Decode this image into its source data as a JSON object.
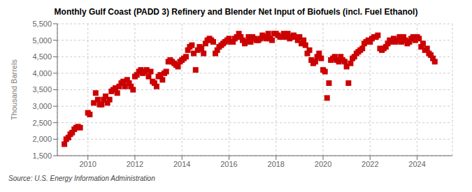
{
  "chart_data": {
    "type": "scatter",
    "title": "Monthly Gulf Coast (PADD 3) Refinery and Blender Net Input of Biofuels (incl. Fuel Ethanol)",
    "ylabel": "Thousand Barrels",
    "annotations": [
      "Source: U.S. Energy Information Administration"
    ],
    "color": "#cc0000",
    "marker": "square",
    "grid": true,
    "xlim": [
      2008.7,
      2025.5
    ],
    "ylim": [
      1500,
      5500
    ],
    "xticks": [
      2010,
      2012,
      2014,
      2016,
      2018,
      2020,
      2022,
      2024
    ],
    "yticks": [
      {
        "value": 1500,
        "label": "1,500"
      },
      {
        "value": 2000,
        "label": "2,000"
      },
      {
        "value": 2500,
        "label": "2,500"
      },
      {
        "value": 3000,
        "label": "3,000"
      },
      {
        "value": 3500,
        "label": "3,500"
      },
      {
        "value": 4000,
        "label": "4,000"
      },
      {
        "value": 4500,
        "label": "4,500"
      },
      {
        "value": 5000,
        "label": "5,000"
      },
      {
        "value": 5500,
        "label": "5,500"
      }
    ],
    "x": [
      2009.0,
      2009.08,
      2009.17,
      2009.25,
      2009.33,
      2009.42,
      2009.5,
      2009.58,
      2009.67,
      2010.0,
      2010.08,
      2010.25,
      2010.33,
      2010.42,
      2010.5,
      2010.58,
      2010.67,
      2010.75,
      2010.83,
      2010.92,
      2011.0,
      2011.08,
      2011.17,
      2011.25,
      2011.33,
      2011.42,
      2011.5,
      2011.58,
      2011.67,
      2011.75,
      2011.83,
      2011.92,
      2012.0,
      2012.08,
      2012.17,
      2012.25,
      2012.33,
      2012.42,
      2012.5,
      2012.58,
      2012.67,
      2012.75,
      2012.83,
      2012.92,
      2013.0,
      2013.08,
      2013.17,
      2013.25,
      2013.33,
      2013.42,
      2013.5,
      2013.58,
      2013.67,
      2013.75,
      2013.83,
      2013.92,
      2014.0,
      2014.08,
      2014.17,
      2014.25,
      2014.33,
      2014.42,
      2014.5,
      2014.58,
      2014.67,
      2014.75,
      2014.83,
      2014.92,
      2015.0,
      2015.08,
      2015.17,
      2015.25,
      2015.33,
      2015.42,
      2015.5,
      2015.58,
      2015.67,
      2015.75,
      2015.83,
      2015.92,
      2016.0,
      2016.08,
      2016.17,
      2016.25,
      2016.33,
      2016.42,
      2016.5,
      2016.58,
      2016.67,
      2016.75,
      2016.83,
      2016.92,
      2017.0,
      2017.08,
      2017.17,
      2017.25,
      2017.33,
      2017.42,
      2017.5,
      2017.58,
      2017.67,
      2017.75,
      2017.83,
      2017.92,
      2018.0,
      2018.08,
      2018.17,
      2018.25,
      2018.33,
      2018.42,
      2018.5,
      2018.58,
      2018.67,
      2018.75,
      2018.83,
      2018.92,
      2019.0,
      2019.08,
      2019.17,
      2019.25,
      2019.33,
      2019.42,
      2019.5,
      2019.58,
      2019.67,
      2019.75,
      2019.83,
      2019.92,
      2020.0,
      2020.08,
      2020.17,
      2020.25,
      2020.33,
      2020.42,
      2020.5,
      2020.58,
      2020.67,
      2020.75,
      2020.83,
      2020.92,
      2021.0,
      2021.08,
      2021.17,
      2021.25,
      2021.33,
      2021.42,
      2021.5,
      2021.58,
      2021.67,
      2021.75,
      2021.83,
      2021.92,
      2022.0,
      2022.08,
      2022.17,
      2022.25,
      2022.33,
      2022.42,
      2022.5,
      2022.58,
      2022.67,
      2022.75,
      2022.83,
      2022.92,
      2023.0,
      2023.08,
      2023.17,
      2023.25,
      2023.33,
      2023.42,
      2023.5,
      2023.58,
      2023.67,
      2023.75,
      2023.83,
      2023.92,
      2024.0,
      2024.08,
      2024.17,
      2024.25,
      2024.33,
      2024.42,
      2024.5,
      2024.58,
      2024.67,
      2024.75
    ],
    "values": [
      1850,
      2000,
      2050,
      2150,
      2200,
      2300,
      2350,
      2380,
      2350,
      2800,
      2750,
      3100,
      3400,
      3200,
      3050,
      3050,
      3200,
      3300,
      3100,
      3200,
      3450,
      3500,
      3550,
      3400,
      3600,
      3700,
      3750,
      3600,
      3800,
      3700,
      3600,
      3500,
      3900,
      3950,
      4050,
      4100,
      4000,
      4050,
      4100,
      3900,
      4050,
      3750,
      3700,
      3600,
      3900,
      3950,
      3800,
      4000,
      4050,
      4350,
      4400,
      4350,
      4300,
      4250,
      4200,
      4350,
      4400,
      4450,
      4500,
      4700,
      4800,
      4850,
      4600,
      4100,
      4700,
      4800,
      4750,
      4600,
      4900,
      5000,
      5050,
      5000,
      4950,
      4600,
      4700,
      4800,
      4850,
      4900,
      4950,
      5000,
      5050,
      4950,
      4950,
      5050,
      5100,
      5200,
      5100,
      5000,
      4900,
      4950,
      5100,
      4950,
      5100,
      5050,
      5000,
      5000,
      5050,
      5150,
      5100,
      5050,
      5200,
      5050,
      5000,
      5200,
      5200,
      5150,
      5100,
      5100,
      5200,
      5100,
      5200,
      5050,
      5100,
      5150,
      5100,
      5000,
      5100,
      4900,
      5000,
      4850,
      4600,
      4700,
      4400,
      4300,
      4350,
      4500,
      4600,
      4450,
      4100,
      4050,
      3250,
      3700,
      4400,
      4450,
      4500,
      4400,
      4350,
      4500,
      4400,
      4350,
      4200,
      3700,
      4300,
      4450,
      4500,
      4600,
      4650,
      4700,
      4750,
      4900,
      4950,
      5000,
      4950,
      5050,
      5100,
      5100,
      5150,
      4750,
      4700,
      4750,
      4800,
      4900,
      5000,
      4950,
      5050,
      4950,
      5000,
      5100,
      4950,
      5100,
      5000,
      4900,
      4950,
      5050,
      5100,
      5000,
      5100,
      5050,
      4800,
      4900,
      4700,
      4750,
      4600,
      4550,
      4450,
      4350
    ]
  }
}
